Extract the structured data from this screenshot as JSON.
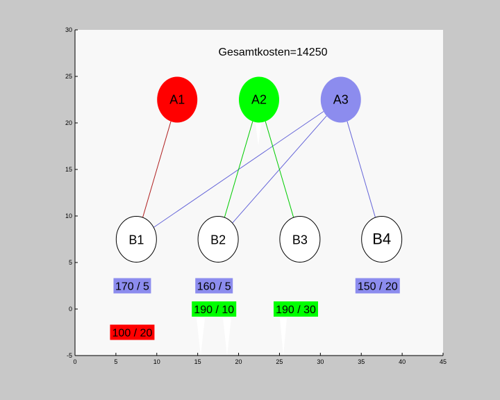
{
  "title": "Gesamtkosten=14250",
  "axes": {
    "xlim": [
      0,
      45
    ],
    "ylim": [
      -5,
      30
    ],
    "xticks": [
      "0",
      "5",
      "10",
      "15",
      "20",
      "25",
      "30",
      "35",
      "40",
      "45"
    ],
    "yticks": [
      "30",
      "25",
      "20",
      "15",
      "10",
      "5",
      "0",
      "-5"
    ]
  },
  "sources": [
    {
      "id": "A1",
      "label": "A1",
      "x": 12.5,
      "y": 22.5,
      "color": "#ff0000"
    },
    {
      "id": "A2",
      "label": "A2",
      "x": 22.5,
      "y": 22.5,
      "color": "#00ff00"
    },
    {
      "id": "A3",
      "label": "A3",
      "x": 32.5,
      "y": 22.5,
      "color": "#8c8cee"
    }
  ],
  "sinks": [
    {
      "id": "B1",
      "label": "B1",
      "x": 7.5,
      "y": 7.5
    },
    {
      "id": "B2",
      "label": "B2",
      "x": 17.5,
      "y": 7.5
    },
    {
      "id": "B3",
      "label": "B3",
      "x": 27.5,
      "y": 7.5
    },
    {
      "id": "B4",
      "label": "B4",
      "x": 37.5,
      "y": 7.5
    }
  ],
  "connections": [
    {
      "from": "A1",
      "to": "B1",
      "color": "#b02020"
    },
    {
      "from": "A3",
      "to": "B1",
      "color": "#6464d8"
    },
    {
      "from": "A2",
      "to": "B2",
      "color": "#00cc00"
    },
    {
      "from": "A3",
      "to": "B2",
      "color": "#6464d8"
    },
    {
      "from": "A2",
      "to": "B3",
      "color": "#00cc00"
    },
    {
      "from": "A3",
      "to": "B4",
      "color": "#6464d8"
    }
  ],
  "flow_labels": [
    {
      "text": "170 / 5",
      "x": 7,
      "y": 2.5,
      "color": "#8c8cee"
    },
    {
      "text": "160 / 5",
      "x": 17,
      "y": 2.5,
      "color": "#8c8cee"
    },
    {
      "text": "150 / 20",
      "x": 37,
      "y": 2.5,
      "color": "#8c8cee"
    },
    {
      "text": "190 / 10",
      "x": 17,
      "y": 0,
      "color": "#00ff00"
    },
    {
      "text": "190 / 30",
      "x": 27,
      "y": 0,
      "color": "#00ff00"
    },
    {
      "text": "100 / 20",
      "x": 7,
      "y": -2.5,
      "color": "#ff0000"
    }
  ]
}
